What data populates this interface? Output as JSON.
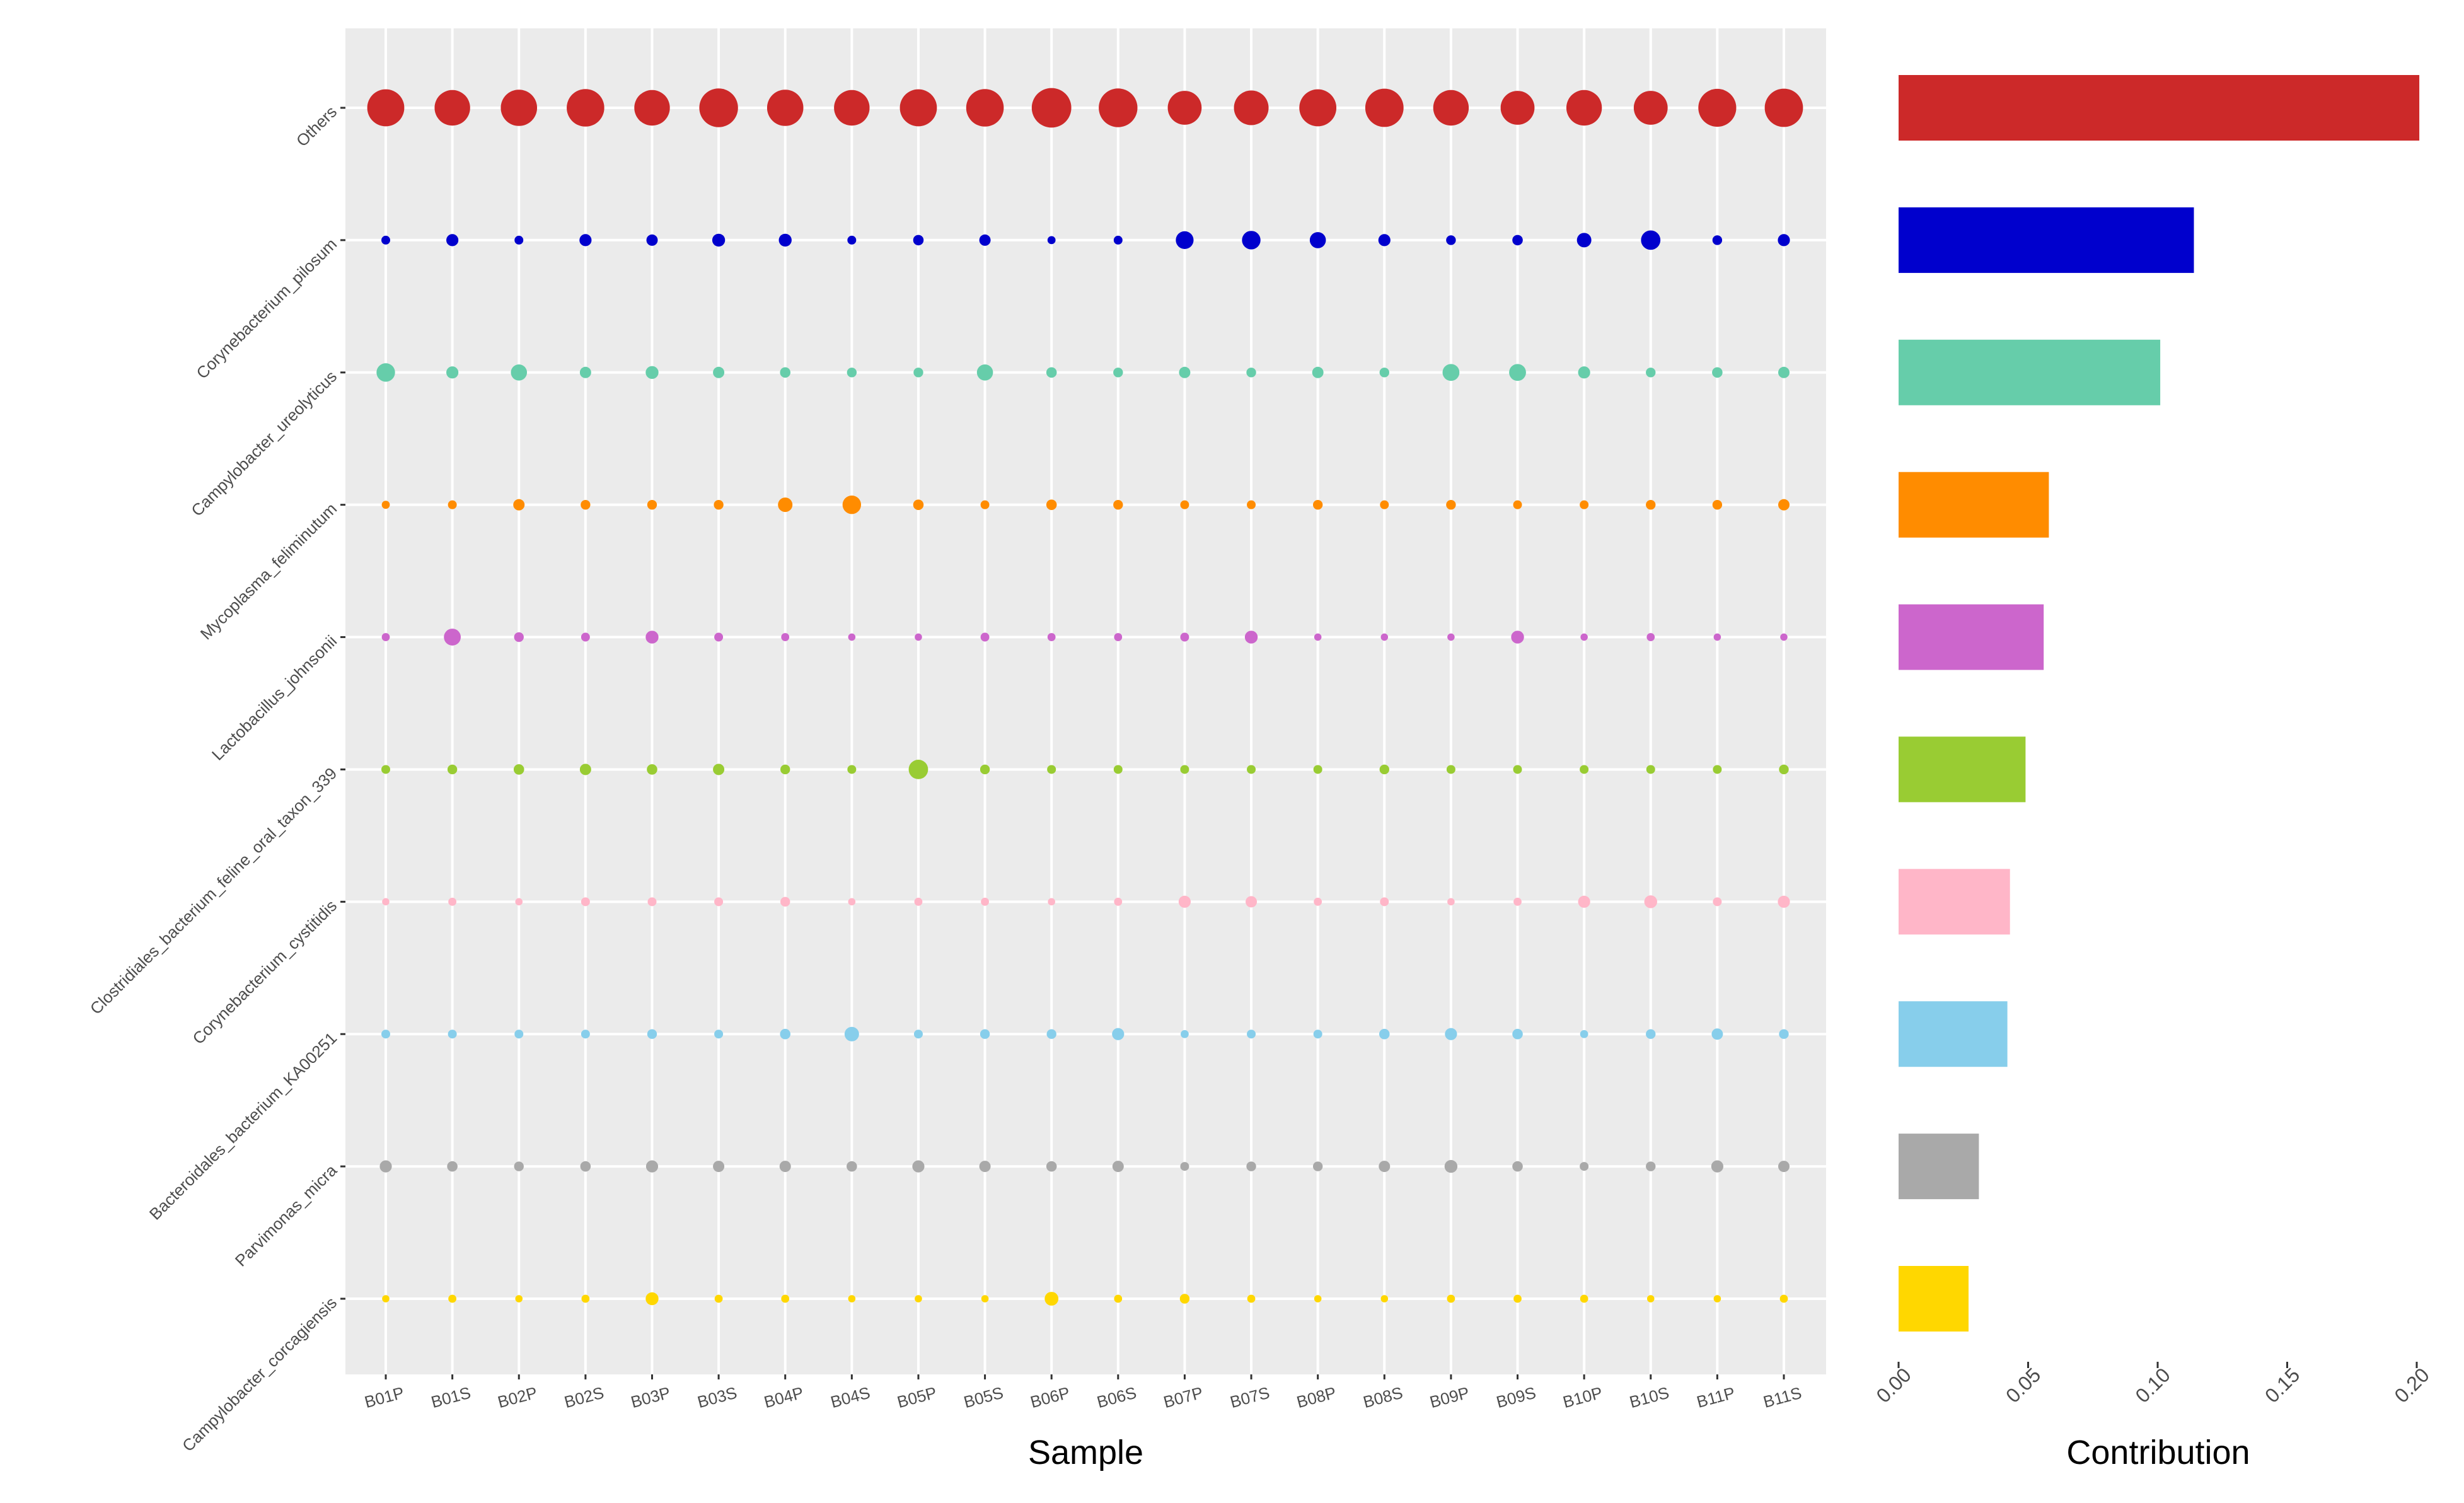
{
  "chart_data": [
    {
      "type": "scatter",
      "xlabel": "Sample",
      "ylabel": "",
      "samples": [
        "B01P",
        "B01S",
        "B02P",
        "B02S",
        "B03P",
        "B03S",
        "B04P",
        "B04S",
        "B05P",
        "B05S",
        "B06P",
        "B06S",
        "B07P",
        "B07S",
        "B08P",
        "B08S",
        "B09P",
        "B09S",
        "B10P",
        "B10S",
        "B11P",
        "B11S"
      ],
      "species": [
        "Others",
        "Corynebacterium_pilosum",
        "Campylobacter_ureolyticus",
        "Mycoplasma_feliminutum",
        "Lactobacillus_johnsonii",
        "Clostridiales_bacterium_feline_oral_taxon_339",
        "Corynebacterium_cystitidis",
        "Bacteroidales_bacterium_KA00251",
        "Parvimonas_micra",
        "Campylobacter_corcagiensis"
      ],
      "colors": [
        "#CC2929",
        "#0000CD",
        "#66CDAA",
        "#FF8C00",
        "#CC66CC",
        "#99CC33",
        "#FFB6C8",
        "#87CEEB",
        "#A9A9A9",
        "#FFD700"
      ],
      "grid": true,
      "legend": "none",
      "sizes": [
        [
          0.92,
          0.88,
          0.9,
          0.93,
          0.88,
          0.96,
          0.9,
          0.88,
          0.92,
          0.93,
          0.98,
          0.96,
          0.84,
          0.86,
          0.92,
          0.95,
          0.88,
          0.84,
          0.88,
          0.84,
          0.94,
          0.95
        ],
        [
          0.22,
          0.3,
          0.22,
          0.3,
          0.28,
          0.32,
          0.32,
          0.22,
          0.26,
          0.28,
          0.2,
          0.22,
          0.44,
          0.46,
          0.4,
          0.3,
          0.24,
          0.26,
          0.36,
          0.48,
          0.24,
          0.3
        ],
        [
          0.46,
          0.3,
          0.4,
          0.28,
          0.32,
          0.28,
          0.26,
          0.24,
          0.24,
          0.4,
          0.26,
          0.24,
          0.28,
          0.24,
          0.28,
          0.24,
          0.42,
          0.42,
          0.3,
          0.24,
          0.26,
          0.28
        ],
        [
          0.2,
          0.22,
          0.28,
          0.24,
          0.24,
          0.24,
          0.36,
          0.46,
          0.26,
          0.22,
          0.26,
          0.24,
          0.22,
          0.22,
          0.24,
          0.22,
          0.24,
          0.22,
          0.22,
          0.24,
          0.24,
          0.28
        ],
        [
          0.2,
          0.42,
          0.24,
          0.22,
          0.32,
          0.22,
          0.2,
          0.18,
          0.18,
          0.22,
          0.2,
          0.2,
          0.22,
          0.32,
          0.18,
          0.18,
          0.18,
          0.32,
          0.18,
          0.2,
          0.18,
          0.18
        ],
        [
          0.22,
          0.24,
          0.26,
          0.28,
          0.26,
          0.28,
          0.24,
          0.22,
          0.48,
          0.24,
          0.22,
          0.22,
          0.22,
          0.22,
          0.22,
          0.24,
          0.22,
          0.22,
          0.22,
          0.22,
          0.22,
          0.24
        ],
        [
          0.18,
          0.2,
          0.18,
          0.22,
          0.22,
          0.22,
          0.24,
          0.18,
          0.2,
          0.2,
          0.18,
          0.2,
          0.3,
          0.28,
          0.2,
          0.22,
          0.18,
          0.2,
          0.3,
          0.32,
          0.22,
          0.3
        ],
        [
          0.22,
          0.22,
          0.22,
          0.22,
          0.24,
          0.22,
          0.26,
          0.36,
          0.22,
          0.24,
          0.24,
          0.3,
          0.2,
          0.22,
          0.22,
          0.26,
          0.3,
          0.26,
          0.2,
          0.24,
          0.28,
          0.24
        ],
        [
          0.3,
          0.26,
          0.24,
          0.26,
          0.3,
          0.28,
          0.28,
          0.26,
          0.3,
          0.28,
          0.26,
          0.28,
          0.22,
          0.24,
          0.24,
          0.28,
          0.32,
          0.26,
          0.22,
          0.24,
          0.3,
          0.28
        ],
        [
          0.18,
          0.2,
          0.18,
          0.2,
          0.32,
          0.2,
          0.2,
          0.18,
          0.18,
          0.18,
          0.34,
          0.2,
          0.24,
          0.2,
          0.18,
          0.18,
          0.2,
          0.2,
          0.2,
          0.18,
          0.18,
          0.2
        ]
      ]
    },
    {
      "type": "bar",
      "orientation": "horizontal",
      "xlabel": "Contribution",
      "ylabel": "",
      "categories": [
        "Others",
        "Corynebacterium_pilosum",
        "Campylobacter_ureolyticus",
        "Mycoplasma_feliminutum",
        "Lactobacillus_johnsonii",
        "Clostridiales_bacterium_feline_oral_taxon_339",
        "Corynebacterium_cystitidis",
        "Bacteroidales_bacterium_KA00251",
        "Parvimonas_micra",
        "Campylobacter_corcagiensis"
      ],
      "values": [
        0.201,
        0.114,
        0.101,
        0.058,
        0.056,
        0.049,
        0.043,
        0.042,
        0.031,
        0.027
      ],
      "colors": [
        "#CC2929",
        "#0000CD",
        "#66CDAA",
        "#FF8C00",
        "#CC66CC",
        "#99CC33",
        "#FFB6C8",
        "#87CEEB",
        "#A9A9A9",
        "#FFD700"
      ],
      "xticks": [
        "0.00",
        "0.05",
        "0.10",
        "0.15",
        "0.20"
      ],
      "xlim": [
        0,
        0.2
      ],
      "grid": false
    }
  ]
}
